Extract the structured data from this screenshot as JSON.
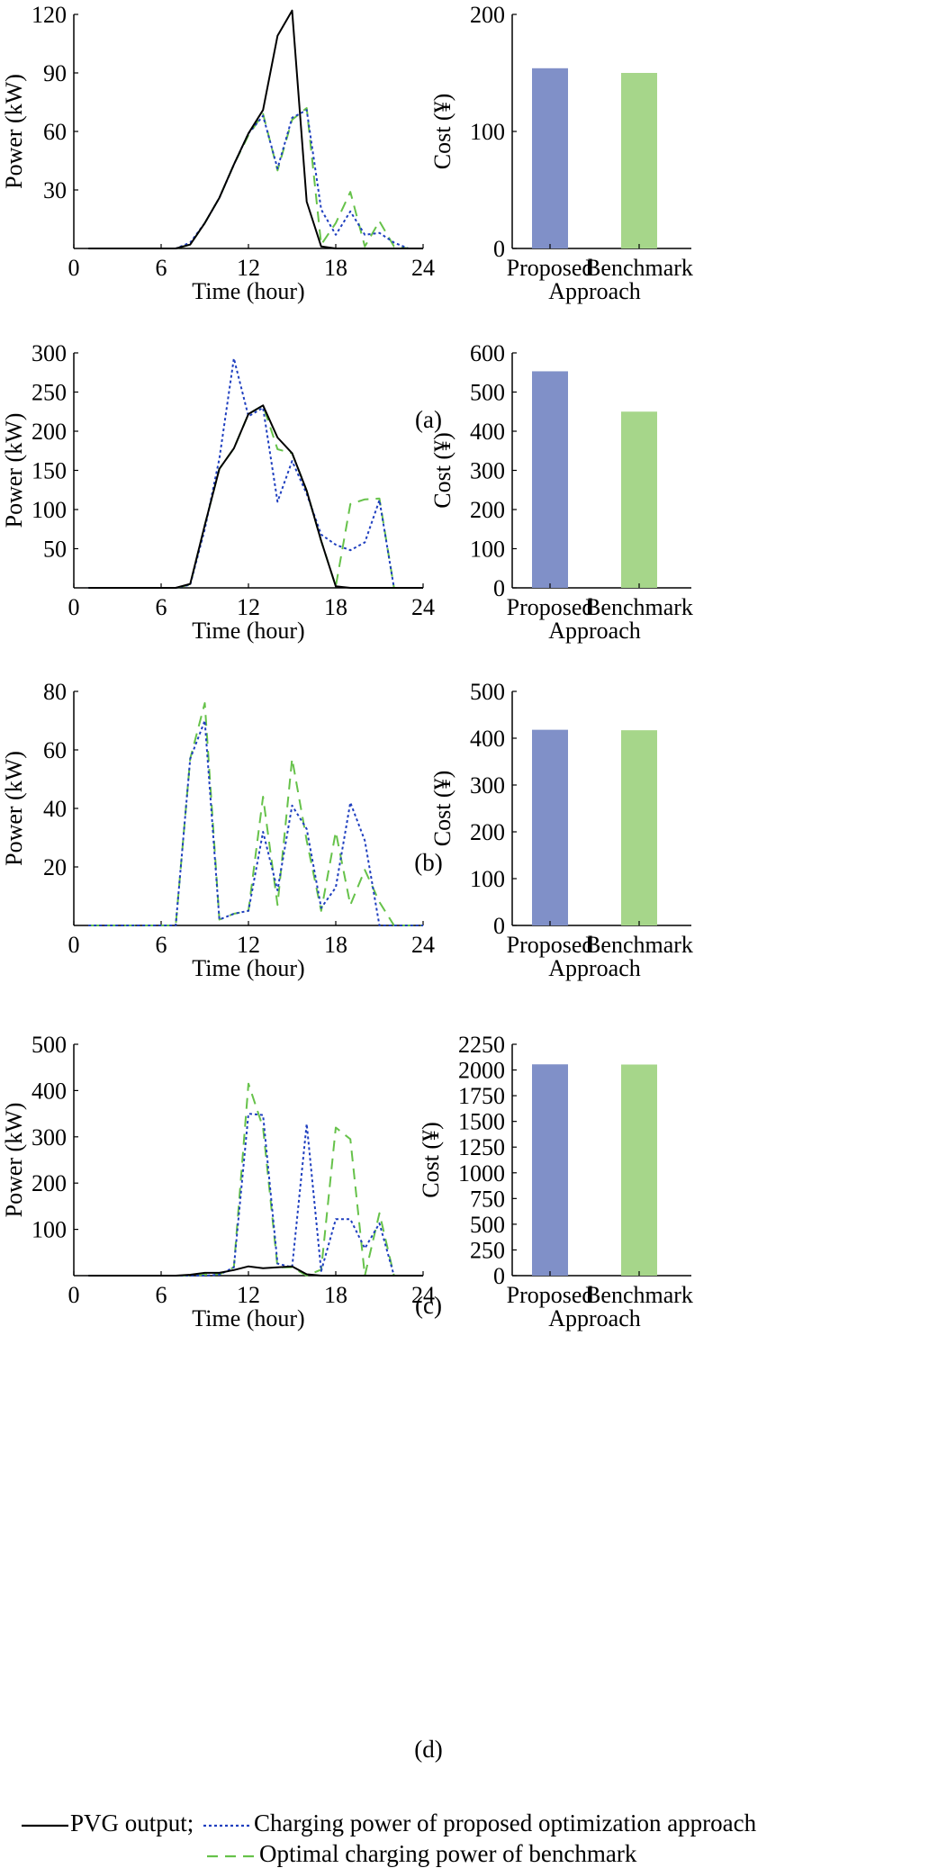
{
  "colors": {
    "pvg": "#000000",
    "proposed": "#1f3fbf",
    "benchmark": "#66c24a",
    "bar_proposed": "#8090c8",
    "bar_benchmark": "#a6d68a"
  },
  "legend": {
    "pvg": "PVG output;",
    "proposed": "Charging power of proposed optimization approach",
    "benchmark": "Optimal charging power of benchmark"
  },
  "chart_data": [
    {
      "panel": "(a)",
      "type": "line",
      "xlabel": "Time (hour)",
      "ylabel": "Power (kW)",
      "xlim": [
        0,
        24
      ],
      "xticks": [
        0,
        6,
        12,
        18,
        24
      ],
      "ylim": [
        0,
        120
      ],
      "yticks": [
        30,
        60,
        90,
        120
      ],
      "x": [
        1,
        2,
        3,
        4,
        5,
        6,
        7,
        8,
        9,
        10,
        11,
        12,
        13,
        14,
        15,
        16,
        17,
        18,
        19,
        20,
        21,
        22,
        23,
        24
      ],
      "series": [
        {
          "key": "pvg",
          "values": [
            0,
            0,
            0,
            0,
            0,
            0,
            0,
            2,
            13,
            26,
            43,
            59,
            71,
            109,
            122,
            24,
            1,
            0,
            0,
            0,
            0,
            0,
            0,
            0
          ]
        },
        {
          "key": "proposed",
          "values": [
            0,
            0,
            0,
            0,
            0,
            0,
            0,
            3,
            13,
            26,
            43,
            59,
            68,
            41,
            67,
            71,
            20,
            7,
            19,
            7,
            8,
            3,
            0,
            0
          ]
        },
        {
          "key": "benchmark",
          "values": [
            0,
            0,
            0,
            0,
            0,
            0,
            0,
            2,
            13,
            26,
            43,
            58,
            69,
            40,
            66,
            72,
            2,
            13,
            29,
            1,
            14,
            1,
            0,
            0
          ]
        }
      ],
      "bar": {
        "type": "bar",
        "ylabel": "Cost (¥)",
        "categories": [
          "Proposed",
          "Benchmark"
        ],
        "xlabel": "Approach",
        "values": [
          154,
          150
        ],
        "ylim": [
          0,
          200
        ],
        "yticks": [
          0,
          100,
          200
        ]
      }
    },
    {
      "panel": "(b)",
      "type": "line",
      "xlabel": "Time (hour)",
      "ylabel": "Power (kW)",
      "xlim": [
        0,
        24
      ],
      "xticks": [
        0,
        6,
        12,
        18,
        24
      ],
      "ylim": [
        0,
        300
      ],
      "yticks": [
        50,
        100,
        150,
        200,
        250,
        300
      ],
      "x": [
        1,
        2,
        3,
        4,
        5,
        6,
        7,
        8,
        9,
        10,
        11,
        12,
        13,
        14,
        15,
        16,
        17,
        18,
        19,
        20,
        21,
        22,
        23,
        24
      ],
      "series": [
        {
          "key": "pvg",
          "values": [
            0,
            0,
            0,
            0,
            0,
            0,
            0,
            5,
            80,
            152,
            178,
            222,
            233,
            192,
            172,
            124,
            60,
            2,
            0,
            0,
            0,
            0,
            0,
            0
          ]
        },
        {
          "key": "proposed",
          "values": [
            0,
            0,
            0,
            0,
            0,
            0,
            0,
            4,
            75,
            165,
            293,
            219,
            230,
            110,
            162,
            120,
            68,
            55,
            48,
            58,
            112,
            0,
            0,
            0
          ]
        },
        {
          "key": "benchmark",
          "values": [
            0,
            0,
            0,
            0,
            0,
            0,
            0,
            4,
            80,
            152,
            178,
            222,
            233,
            177,
            172,
            124,
            60,
            2,
            107,
            113,
            114,
            0,
            0,
            0
          ]
        }
      ],
      "bar": {
        "type": "bar",
        "ylabel": "Cost (¥)",
        "categories": [
          "Proposed",
          "Benchmark"
        ],
        "xlabel": "Approach",
        "values": [
          553,
          450
        ],
        "ylim": [
          0,
          600
        ],
        "yticks": [
          0,
          100,
          200,
          300,
          400,
          500,
          600
        ]
      }
    },
    {
      "panel": "(c)",
      "type": "line",
      "xlabel": "Time (hour)",
      "ylabel": "Power (kW)",
      "xlim": [
        0,
        24
      ],
      "xticks": [
        0,
        6,
        12,
        18,
        24
      ],
      "ylim": [
        0,
        80
      ],
      "yticks": [
        20,
        40,
        60,
        80
      ],
      "x": [
        1,
        2,
        3,
        4,
        5,
        6,
        7,
        8,
        9,
        10,
        11,
        12,
        13,
        14,
        15,
        16,
        17,
        18,
        19,
        20,
        21,
        22,
        23,
        24
      ],
      "series": [
        {
          "key": "proposed",
          "values": [
            0,
            0,
            0,
            0,
            0,
            0,
            0,
            57,
            70,
            2,
            4,
            5,
            32,
            12,
            41,
            33,
            6,
            13,
            42,
            29,
            0,
            0,
            0,
            0
          ]
        },
        {
          "key": "benchmark",
          "values": [
            0,
            0,
            0,
            0,
            0,
            0,
            0,
            57,
            76,
            2,
            4,
            5,
            44,
            7,
            57,
            29,
            5,
            32,
            7,
            19,
            8,
            0,
            0,
            0
          ]
        }
      ],
      "bar": {
        "type": "bar",
        "ylabel": "Cost (¥)",
        "categories": [
          "Proposed",
          "Benchmark"
        ],
        "xlabel": "Approach",
        "values": [
          418,
          417
        ],
        "ylim": [
          0,
          500
        ],
        "yticks": [
          0,
          100,
          200,
          300,
          400,
          500
        ]
      }
    },
    {
      "panel": "(d)",
      "type": "line",
      "xlabel": "Time (hour)",
      "ylabel": "Power (kW)",
      "xlim": [
        0,
        24
      ],
      "xticks": [
        0,
        6,
        12,
        18,
        24
      ],
      "ylim": [
        0,
        500
      ],
      "yticks": [
        100,
        200,
        300,
        400,
        500
      ],
      "x": [
        1,
        2,
        3,
        4,
        5,
        6,
        7,
        8,
        9,
        10,
        11,
        12,
        13,
        14,
        15,
        16,
        17,
        18,
        19,
        20,
        21,
        22,
        23,
        24
      ],
      "series": [
        {
          "key": "pvg",
          "values": [
            0,
            0,
            0,
            0,
            0,
            0,
            0,
            2,
            6,
            6,
            12,
            20,
            16,
            18,
            20,
            3,
            0,
            0,
            0,
            0,
            0,
            0,
            0,
            0
          ]
        },
        {
          "key": "proposed",
          "values": [
            0,
            0,
            0,
            0,
            0,
            0,
            0,
            0,
            0,
            2,
            18,
            350,
            347,
            26,
            18,
            328,
            10,
            122,
            122,
            59,
            113,
            0,
            0,
            0
          ]
        },
        {
          "key": "benchmark",
          "values": [
            0,
            0,
            0,
            0,
            0,
            0,
            0,
            0,
            2,
            3,
            18,
            415,
            320,
            18,
            18,
            0,
            13,
            320,
            295,
            0,
            135,
            0,
            0,
            0
          ]
        }
      ],
      "bar": {
        "type": "bar",
        "ylabel": "Cost (¥)",
        "categories": [
          "Proposed",
          "Benchmark"
        ],
        "xlabel": "Approach",
        "values": [
          2055,
          2053
        ],
        "ylim": [
          0,
          2250
        ],
        "yticks": [
          0,
          250,
          500,
          750,
          1000,
          1250,
          1500,
          1750,
          2000,
          2250
        ]
      }
    }
  ]
}
